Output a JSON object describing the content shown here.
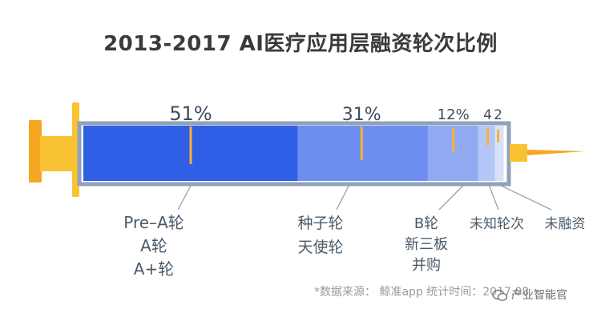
{
  "chart_data": {
    "type": "bar",
    "title": "2013-2017  AI医疗应用层融资轮次比例",
    "categories": [
      "Pre-A轮/A轮/A+轮",
      "种子轮/天使轮",
      "B轮/新三板/并购",
      "未知轮次",
      "未融资"
    ],
    "values": [
      51,
      31,
      12,
      4,
      2
    ],
    "value_labels": [
      "51%",
      "31%",
      "12%",
      "4",
      "2"
    ],
    "category_lines": [
      [
        "Pre–A轮",
        "A轮",
        "A+轮"
      ],
      [
        "种子轮",
        "天使轮"
      ],
      [
        "B轮",
        "新三板",
        "并购"
      ],
      [
        "未知轮次"
      ],
      [
        "未融资"
      ]
    ],
    "colors": [
      "#2f5fe6",
      "#6d8ef0",
      "#8fa9f3",
      "#b5c7f7",
      "#d8e1fa"
    ],
    "ylim": [
      0,
      100
    ]
  },
  "source_text": "*数据来源：  鲸准app  统计时间：2017.08",
  "watermark_text": "产业智能官",
  "colors": {
    "accent": "#f9b233",
    "barrel_border": "#8fa2b8",
    "needle": "#f5a623"
  }
}
